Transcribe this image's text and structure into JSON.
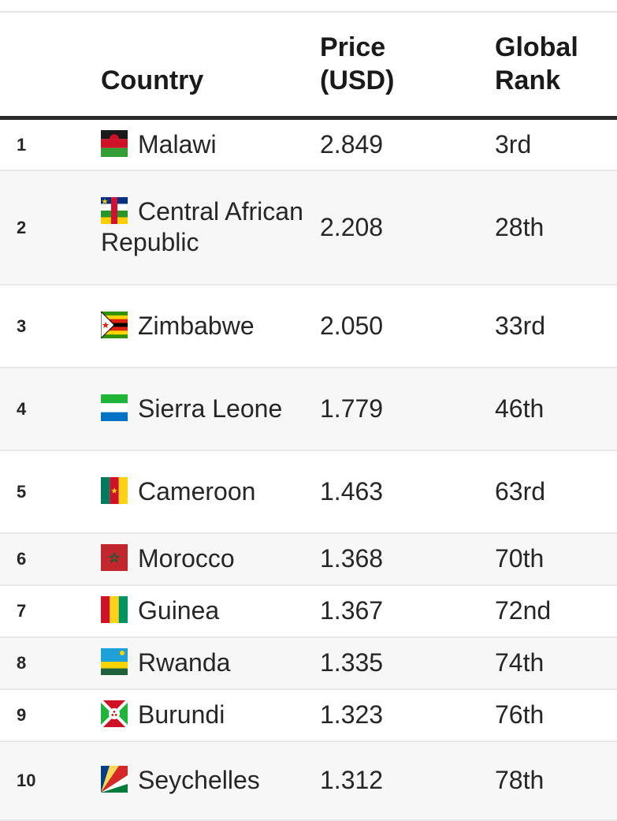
{
  "header": {
    "rank": "",
    "country": "Country",
    "price": "Price\n(USD)",
    "global_rank": "Global\nRank"
  },
  "rows": [
    {
      "rank": "1",
      "country": "Malawi",
      "flag": "malawi-flag",
      "price": "2.849",
      "global_rank": "3rd"
    },
    {
      "rank": "2",
      "country": "Central African Republic",
      "flag": "central-african-republic-flag",
      "price": "2.208",
      "global_rank": "28th"
    },
    {
      "rank": "3",
      "country": "Zimbabwe",
      "flag": "zimbabwe-flag",
      "price": "2.050",
      "global_rank": "33rd"
    },
    {
      "rank": "4",
      "country": "Sierra Leone",
      "flag": "sierra-leone-flag",
      "price": "1.779",
      "global_rank": "46th"
    },
    {
      "rank": "5",
      "country": "Cameroon",
      "flag": "cameroon-flag",
      "price": "1.463",
      "global_rank": "63rd"
    },
    {
      "rank": "6",
      "country": "Morocco",
      "flag": "morocco-flag",
      "price": "1.368",
      "global_rank": "70th"
    },
    {
      "rank": "7",
      "country": "Guinea",
      "flag": "guinea-flag",
      "price": "1.367",
      "global_rank": "72nd"
    },
    {
      "rank": "8",
      "country": "Rwanda",
      "flag": "rwanda-flag",
      "price": "1.335",
      "global_rank": "74th"
    },
    {
      "rank": "9",
      "country": "Burundi",
      "flag": "burundi-flag",
      "price": "1.323",
      "global_rank": "76th"
    },
    {
      "rank": "10",
      "country": "Seychelles",
      "flag": "seychelles-flag",
      "price": "1.312",
      "global_rank": "78th"
    }
  ]
}
